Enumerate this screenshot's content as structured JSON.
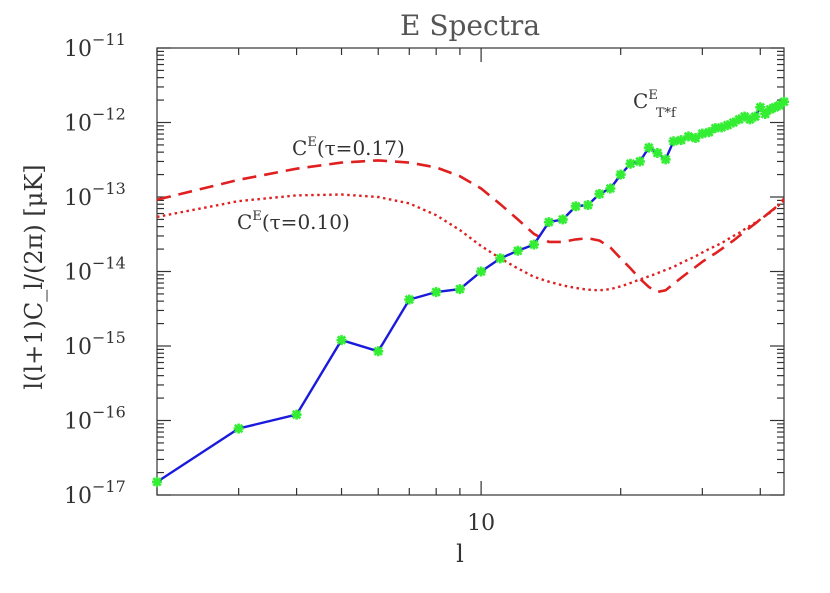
{
  "chart_data": {
    "type": "line",
    "title": "E Spectra",
    "xlabel": "l",
    "ylabel": "l(l+1)C_l/(2π) [μK]",
    "xscale": "log",
    "yscale": "log",
    "xlim": [
      2,
      45
    ],
    "ylim": [
      1e-17,
      1e-11
    ],
    "grid": false,
    "x_ticks": [
      {
        "value": 10,
        "label": "10"
      }
    ],
    "y_ticks": [
      {
        "value": 1e-17,
        "base": "10",
        "exp": "−17"
      },
      {
        "value": 1e-16,
        "base": "10",
        "exp": "−16"
      },
      {
        "value": 1e-15,
        "base": "10",
        "exp": "−15"
      },
      {
        "value": 1e-14,
        "base": "10",
        "exp": "−14"
      },
      {
        "value": 1e-13,
        "base": "10",
        "exp": "−13"
      },
      {
        "value": 1e-12,
        "base": "10",
        "exp": "−12"
      },
      {
        "value": 1e-11,
        "base": "10",
        "exp": "−11"
      }
    ],
    "series": [
      {
        "name": "C^E_{T*f}",
        "label_main": "C",
        "label_sup": "E",
        "label_sub": "T*f",
        "style": "solid-markers",
        "color": "#1a1adc",
        "marker_color": "#33ee33",
        "x": [
          2,
          3,
          4,
          5,
          6,
          7,
          8,
          9,
          10,
          11,
          12,
          13,
          14,
          15,
          16,
          17,
          18,
          19,
          20,
          21,
          22,
          23,
          24,
          25,
          26,
          27,
          28,
          29,
          30,
          31,
          32,
          33,
          34,
          35,
          36,
          37,
          38,
          39,
          40,
          41,
          42,
          43,
          44,
          45
        ],
        "y": [
          1.5e-17,
          7.8e-17,
          1.2e-16,
          1.2e-15,
          8.5e-16,
          4.2e-15,
          5.3e-15,
          5.8e-15,
          1e-14,
          1.5e-14,
          1.9e-14,
          2.3e-14,
          4.6e-14,
          5e-14,
          7.5e-14,
          7.8e-14,
          1.1e-13,
          1.3e-13,
          2e-13,
          2.8e-13,
          3e-13,
          4.6e-13,
          3.9e-13,
          3.2e-13,
          5.6e-13,
          5.8e-13,
          6.5e-13,
          6.2e-13,
          7.1e-13,
          7.4e-13,
          8.4e-13,
          8.6e-13,
          9.2e-13,
          1e-12,
          1.1e-12,
          1.2e-12,
          1.1e-12,
          1.2e-12,
          1.6e-12,
          1.3e-12,
          1.5e-12,
          1.6e-12,
          1.7e-12,
          1.9e-12
        ]
      },
      {
        "name": "C^E(τ=0.17)",
        "label_main": "C",
        "label_sup": "E",
        "label_rest": "(τ=0.17)",
        "style": "dashed",
        "color": "#e02020",
        "x": [
          2,
          3,
          4,
          5,
          6,
          7,
          8,
          9,
          10,
          11,
          12,
          13,
          14,
          15,
          16,
          17,
          18,
          19,
          20,
          21,
          22,
          23,
          24,
          25,
          26,
          27,
          28,
          29,
          30,
          31,
          32,
          33,
          34,
          35,
          36,
          37,
          38,
          39,
          40,
          41,
          42,
          43,
          44,
          45
        ],
        "y": [
          9.2e-14,
          1.7e-13,
          2.4e-13,
          2.9e-13,
          3.1e-13,
          2.9e-13,
          2.5e-13,
          1.9e-13,
          1.3e-13,
          8e-14,
          5e-14,
          3.2e-14,
          2.5e-14,
          2.5e-14,
          2.7e-14,
          2.8e-14,
          2.6e-14,
          2.1e-14,
          1.5e-14,
          1.1e-14,
          8e-15,
          6.2e-15,
          5.3e-15,
          5.6e-15,
          6.8e-15,
          8.2e-15,
          9.8e-15,
          1.15e-14,
          1.35e-14,
          1.55e-14,
          1.75e-14,
          2e-14,
          2.3e-14,
          2.6e-14,
          3e-14,
          3.4e-14,
          3.9e-14,
          4.4e-14,
          5e-14,
          5.6e-14,
          6.3e-14,
          7.1e-14,
          8e-14,
          9.5e-14
        ]
      },
      {
        "name": "C^E(τ=0.10)",
        "label_main": "C",
        "label_sup": "E",
        "label_rest": "(τ=0.10)",
        "style": "dotted",
        "color": "#e02020",
        "x": [
          2,
          3,
          4,
          5,
          6,
          7,
          8,
          9,
          10,
          11,
          12,
          13,
          14,
          15,
          16,
          17,
          18,
          19,
          20,
          21,
          22,
          23,
          24,
          25,
          26,
          27,
          28,
          29,
          30,
          31,
          32,
          33,
          34,
          35,
          36,
          37,
          38,
          39,
          40,
          41,
          42,
          43,
          44,
          45
        ],
        "y": [
          5.4e-14,
          8.8e-14,
          1.05e-13,
          1.08e-13,
          1e-13,
          8.2e-14,
          5.7e-14,
          3.6e-14,
          2.2e-14,
          1.5e-14,
          1.1e-14,
          8.5e-15,
          7.3e-15,
          6.5e-15,
          6e-15,
          5.7e-15,
          5.6e-15,
          5.8e-15,
          6.3e-15,
          7e-15,
          7.8e-15,
          8.6e-15,
          9.5e-15,
          1.05e-14,
          1.15e-14,
          1.3e-14,
          1.45e-14,
          1.6e-14,
          1.8e-14,
          2e-14,
          2.2e-14,
          2.4e-14,
          2.7e-14,
          3e-14,
          3.3e-14,
          3.7e-14,
          4.1e-14,
          4.5e-14,
          5e-14,
          5.6e-14,
          6.2e-14,
          7e-14,
          7.9e-14,
          9e-14
        ]
      }
    ]
  }
}
